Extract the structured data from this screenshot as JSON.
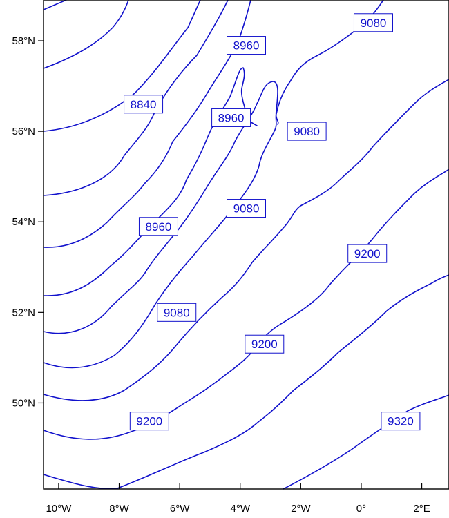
{
  "colors": {
    "contour": "#1111cc",
    "frame": "#000000"
  },
  "axes": {
    "x_ticks": [
      {
        "lon": -10,
        "label": "10°W"
      },
      {
        "lon": -8,
        "label": "8°W"
      },
      {
        "lon": -6,
        "label": "6°W"
      },
      {
        "lon": -4,
        "label": "4°W"
      },
      {
        "lon": -2,
        "label": "2°W"
      },
      {
        "lon": 0,
        "label": "0°"
      },
      {
        "lon": 2,
        "label": "2°E"
      }
    ],
    "y_ticks": [
      {
        "lat": 58,
        "label": "58°N"
      },
      {
        "lat": 56,
        "label": "56°N"
      },
      {
        "lat": 54,
        "label": "54°N"
      },
      {
        "lat": 52,
        "label": "52°N"
      },
      {
        "lat": 50,
        "label": "50°N"
      }
    ],
    "lon_range": [
      -10.5,
      2.9
    ],
    "lat_range": [
      48.1,
      58.9
    ]
  },
  "contour_labels": [
    {
      "text": "8840",
      "lon": -7.2,
      "lat": 56.6
    },
    {
      "text": "8960",
      "lon": -3.8,
      "lat": 57.9
    },
    {
      "text": "8960",
      "lon": -4.3,
      "lat": 56.3
    },
    {
      "text": "8960",
      "lon": -6.7,
      "lat": 53.9
    },
    {
      "text": "9080",
      "lon": 0.4,
      "lat": 58.4
    },
    {
      "text": "9080",
      "lon": -1.8,
      "lat": 56.0
    },
    {
      "text": "9080",
      "lon": -3.8,
      "lat": 54.3
    },
    {
      "text": "9080",
      "lon": -6.1,
      "lat": 52.0
    },
    {
      "text": "9200",
      "lon": 0.2,
      "lat": 53.3
    },
    {
      "text": "9200",
      "lon": -3.2,
      "lat": 51.3
    },
    {
      "text": "9200",
      "lon": -7.0,
      "lat": 49.6
    },
    {
      "text": "9320",
      "lon": 1.3,
      "lat": 49.6
    }
  ]
}
